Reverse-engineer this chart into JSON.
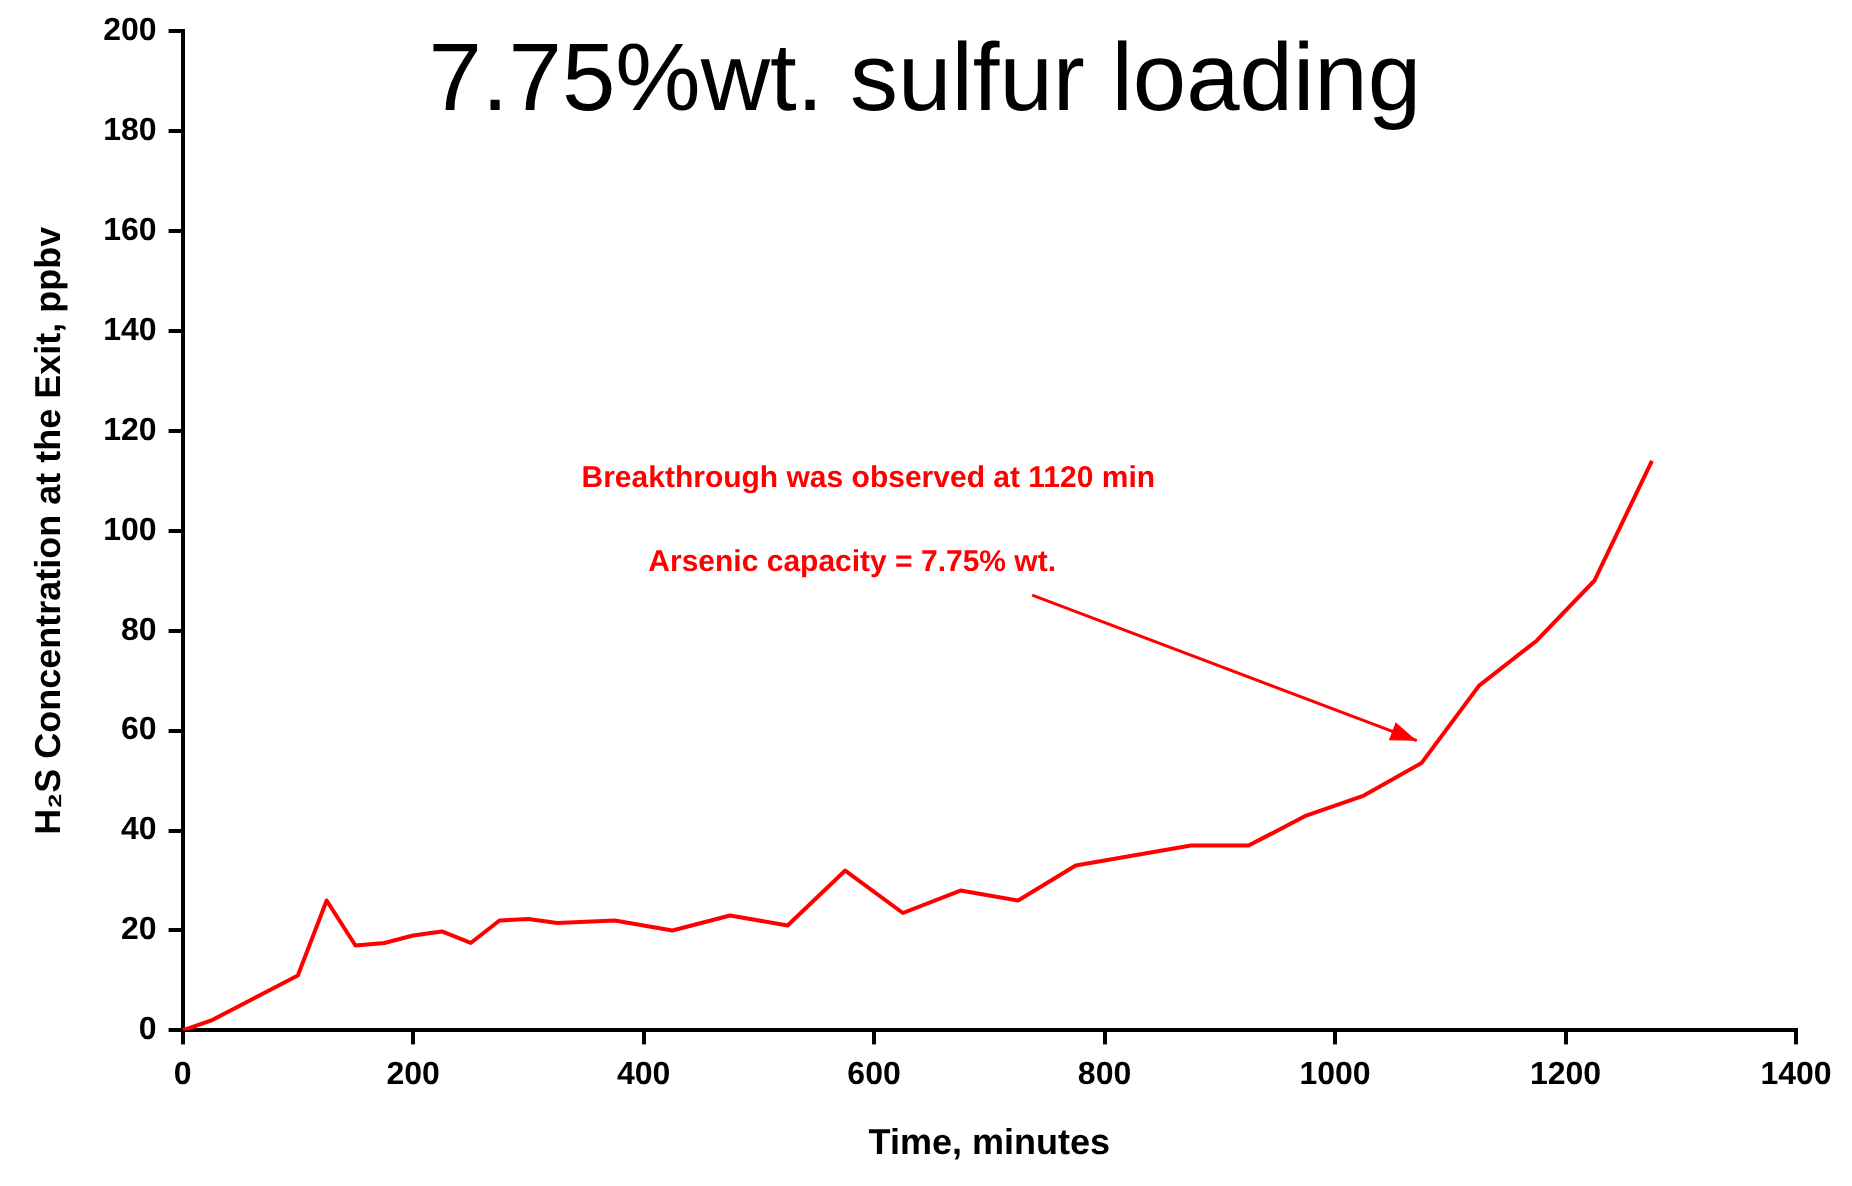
{
  "chart_data": {
    "type": "line",
    "title": "7.75%wt. sulfur loading",
    "xlabel": "Time, minutes",
    "ylabel": "H₂S Concentration at the Exit, ppbv",
    "annotations": [
      "Breakthrough was observed at 1120 min",
      "Arsenic capacity = 7.75% wt."
    ],
    "x": [
      0,
      25,
      50,
      75,
      100,
      125,
      150,
      175,
      200,
      225,
      250,
      275,
      300,
      325,
      375,
      425,
      475,
      525,
      575,
      625,
      675,
      725,
      775,
      825,
      875,
      925,
      975,
      1025,
      1075,
      1125,
      1175,
      1225,
      1275
    ],
    "series": [
      {
        "color": "#ff0000",
        "values": [
          0,
          2,
          5,
          8,
          11,
          26,
          17,
          17.5,
          19,
          19.8,
          17.5,
          22,
          22.3,
          21.5,
          22,
          20,
          23,
          21,
          32,
          23.5,
          28,
          26,
          33,
          35,
          37,
          37,
          43,
          47,
          53.5,
          69,
          78,
          90,
          114
        ]
      }
    ],
    "xlim": [
      0,
      1400
    ],
    "xticks": [
      0,
      200,
      400,
      600,
      800,
      1000,
      1200,
      1400
    ],
    "ylim": [
      0,
      200
    ],
    "yticks": [
      0,
      20,
      40,
      60,
      80,
      100,
      120,
      140,
      160,
      180,
      200
    ],
    "grid": false,
    "legend": false,
    "marker": "none",
    "line_style": "solid"
  }
}
